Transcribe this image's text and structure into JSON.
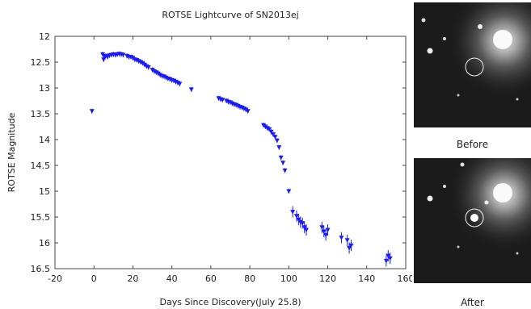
{
  "chart_data": {
    "type": "scatter",
    "title": "ROTSE Lightcurve of SN2013ej",
    "xlabel": "Days Since Discovery(July 25.8)",
    "ylabel": "ROTSE Magnitude",
    "xlim": [
      -20,
      160
    ],
    "ylim": [
      16.5,
      12
    ],
    "y_inverted": true,
    "xticks": [
      "-20",
      "0",
      "20",
      "40",
      "60",
      "80",
      "100",
      "120",
      "140",
      "160"
    ],
    "yticks": [
      "12",
      "12.5",
      "13",
      "13.5",
      "14",
      "14.5",
      "15",
      "15.5",
      "16",
      "16.5"
    ],
    "grid": false,
    "marker_color": "#1a1aff",
    "series": [
      {
        "name": "",
        "x": [
          -1,
          4.5,
          5,
          5.5,
          6,
          7,
          8,
          9,
          10,
          11,
          12,
          13,
          14,
          15,
          17,
          18,
          19,
          20,
          21,
          22,
          23,
          24,
          25,
          26,
          27,
          28,
          30,
          31,
          32,
          33,
          34,
          35,
          36,
          37,
          38,
          39,
          40,
          41,
          42,
          43,
          44,
          50,
          64,
          65,
          66,
          68,
          69,
          70,
          71,
          72,
          73,
          74,
          75,
          76,
          77,
          78,
          79,
          87,
          88,
          89,
          90,
          91,
          92,
          93,
          94,
          95,
          96,
          97,
          98,
          100,
          102,
          104,
          105,
          106,
          107,
          108,
          109,
          117,
          118,
          119,
          120,
          127,
          130,
          131,
          132,
          150,
          151,
          152
        ],
        "y": [
          13.45,
          12.35,
          12.45,
          12.4,
          12.38,
          12.4,
          12.37,
          12.36,
          12.35,
          12.36,
          12.35,
          12.34,
          12.35,
          12.36,
          12.38,
          12.4,
          12.4,
          12.42,
          12.45,
          12.46,
          12.48,
          12.5,
          12.52,
          12.55,
          12.58,
          12.6,
          12.65,
          12.68,
          12.7,
          12.72,
          12.75,
          12.77,
          12.78,
          12.8,
          12.82,
          12.83,
          12.85,
          12.86,
          12.88,
          12.9,
          12.92,
          13.03,
          13.2,
          13.22,
          13.23,
          13.25,
          13.27,
          13.28,
          13.3,
          13.32,
          13.33,
          13.35,
          13.37,
          13.38,
          13.4,
          13.42,
          13.45,
          13.72,
          13.75,
          13.78,
          13.8,
          13.85,
          13.9,
          13.95,
          14.02,
          14.15,
          14.35,
          14.45,
          14.6,
          15.0,
          15.4,
          15.48,
          15.55,
          15.6,
          15.62,
          15.7,
          15.75,
          15.7,
          15.78,
          15.85,
          15.75,
          15.9,
          15.95,
          16.1,
          16.05,
          16.35,
          16.25,
          16.3
        ]
      }
    ]
  },
  "images": [
    {
      "caption": "Before"
    },
    {
      "caption": "After"
    }
  ]
}
